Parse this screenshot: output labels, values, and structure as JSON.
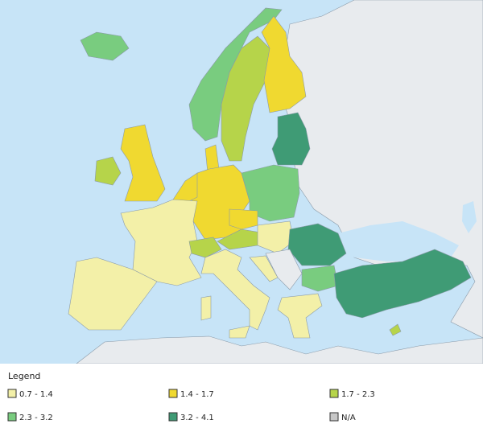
{
  "legend": {
    "title": "Legend",
    "items": [
      {
        "label": "0.7 - 1.4",
        "color": "#f3f0a8"
      },
      {
        "label": "1.4 - 1.7",
        "color": "#f0d930"
      },
      {
        "label": "1.7 - 2.3",
        "color": "#b6d44a"
      },
      {
        "label": "2.3 - 3.2",
        "color": "#79cc7f"
      },
      {
        "label": "3.2 - 4.1",
        "color": "#3f9b75"
      },
      {
        "label": "N/A",
        "color": "#c8c8c8"
      }
    ]
  }
}
